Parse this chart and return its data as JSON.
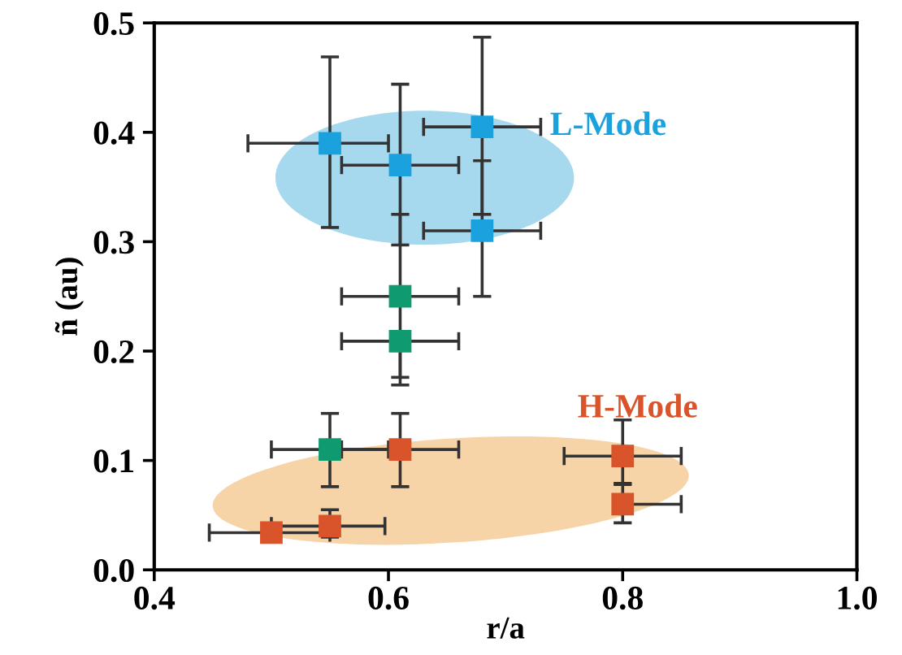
{
  "chart_data": {
    "type": "scatter",
    "xlabel": "r/a",
    "ylabel": "ñ (au)",
    "xlim": [
      0.4,
      1.0
    ],
    "ylim": [
      0.0,
      0.5
    ],
    "xticks": [
      {
        "value": 0.4,
        "label": "0.4"
      },
      {
        "value": 0.6,
        "label": "0.6"
      },
      {
        "value": 0.8,
        "label": "0.8"
      },
      {
        "value": 1.0,
        "label": "1.0"
      }
    ],
    "yticks": [
      {
        "value": 0.0,
        "label": "0.0"
      },
      {
        "value": 0.1,
        "label": "0.1"
      },
      {
        "value": 0.2,
        "label": "0.2"
      },
      {
        "value": 0.3,
        "label": "0.3"
      },
      {
        "value": 0.4,
        "label": "0.4"
      },
      {
        "value": 0.5,
        "label": "0.5"
      }
    ],
    "marker": "square",
    "grid": false,
    "legend": false,
    "series": [
      {
        "name": "L-Mode",
        "color": "#1ba1dd",
        "x": [
          0.55,
          0.61,
          0.68,
          0.68
        ],
        "values": [
          0.39,
          0.37,
          0.31,
          0.405
        ],
        "xerrors": [
          [
            0.48,
            0.6
          ],
          [
            0.56,
            0.66
          ],
          [
            0.63,
            0.73
          ],
          [
            0.63,
            0.73
          ]
        ],
        "errors": [
          [
            0.313,
            0.469
          ],
          [
            0.297,
            0.444
          ],
          [
            0.25,
            0.374
          ],
          [
            0.325,
            0.487
          ]
        ]
      },
      {
        "color": "#0f9a6f",
        "x": [
          0.61,
          0.61,
          0.55
        ],
        "values": [
          0.25,
          0.209,
          0.11
        ],
        "xerrors": [
          [
            0.56,
            0.66
          ],
          [
            0.56,
            0.66
          ],
          [
            0.5,
            0.6
          ]
        ],
        "errors": [
          [
            0.176,
            0.325
          ],
          [
            0.169,
            0.209
          ],
          [
            0.076,
            0.143
          ]
        ]
      },
      {
        "name": "H-Mode",
        "color": "#d9532b",
        "x": [
          0.61,
          0.55,
          0.5,
          0.8,
          0.8
        ],
        "values": [
          0.11,
          0.04,
          0.034,
          0.06,
          0.104
        ],
        "xerrors": [
          [
            0.56,
            0.66
          ],
          [
            0.5,
            0.597
          ],
          [
            0.447,
            0.55
          ],
          [
            0.8,
            0.85
          ],
          [
            0.75,
            0.85
          ]
        ],
        "errors": [
          [
            0.076,
            0.143
          ],
          [
            0.03,
            0.055
          ],
          null,
          [
            0.043,
            0.078
          ],
          [
            0.079,
            0.137
          ]
        ]
      }
    ]
  }
}
